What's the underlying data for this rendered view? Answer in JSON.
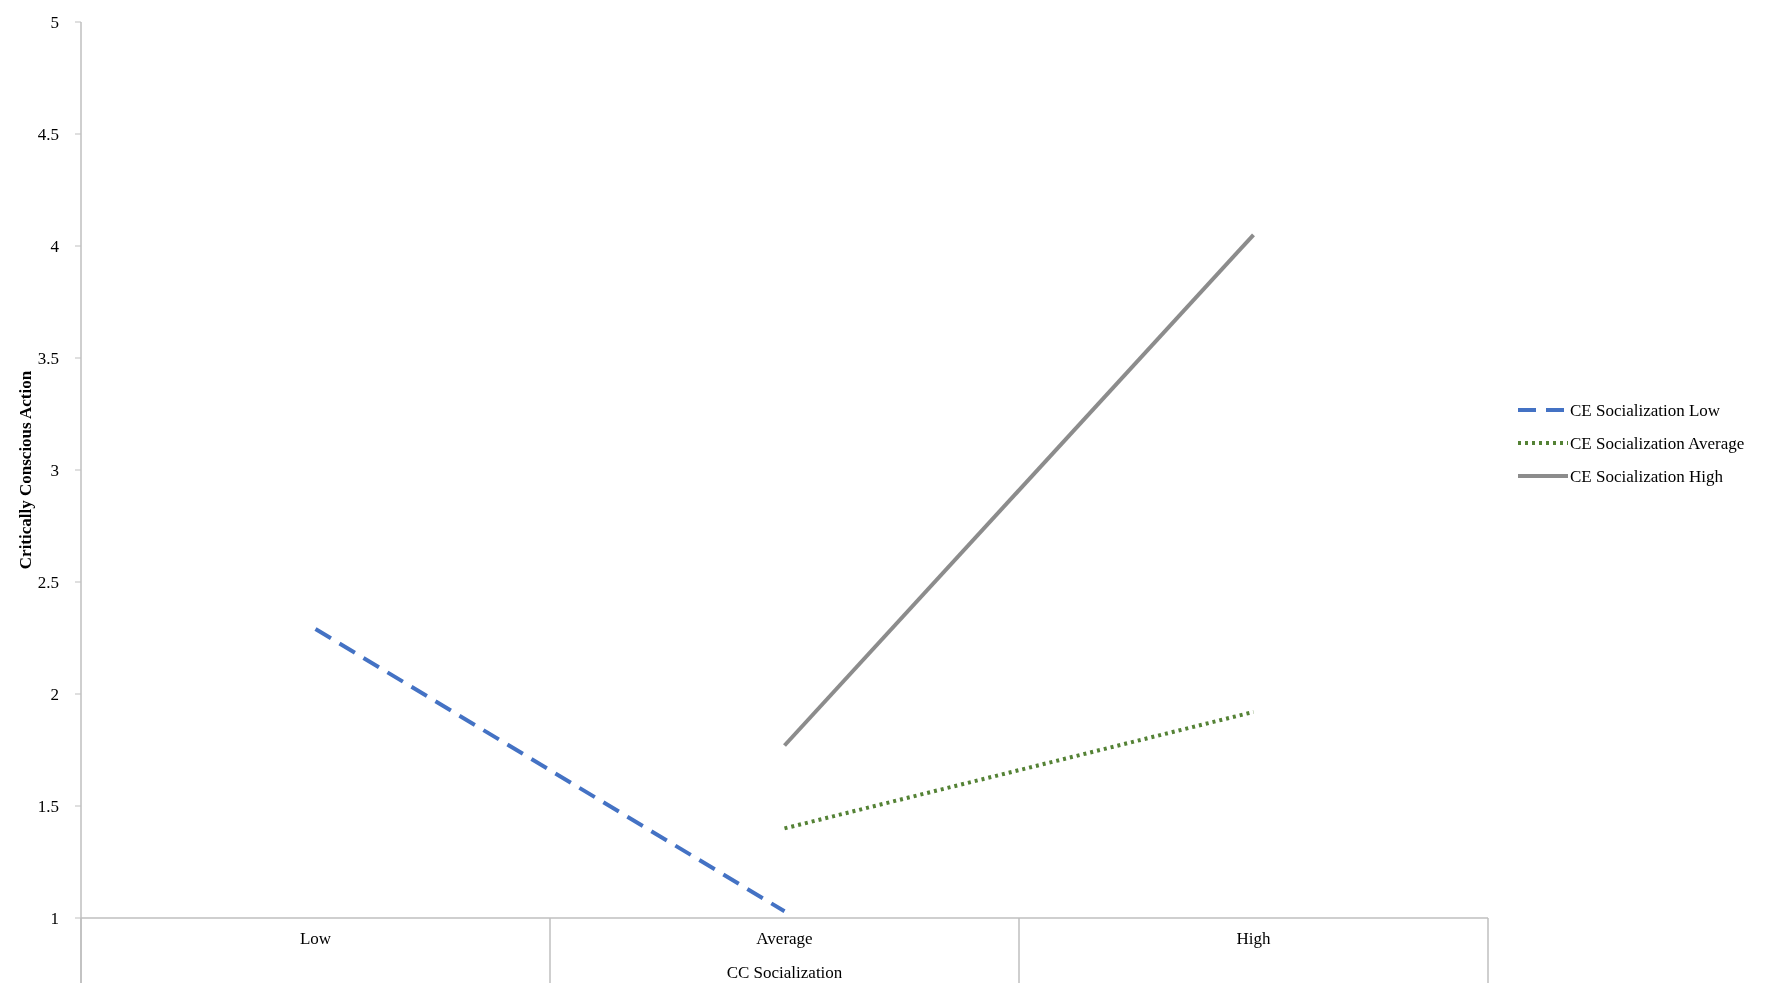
{
  "chart_data": {
    "type": "line",
    "xlabel": "CC Socialization",
    "ylabel": "Critically Conscious Action",
    "categories": [
      "Low",
      "Average",
      "High"
    ],
    "series": [
      {
        "name": "CE Socialization Low",
        "color": "#4472c4",
        "line_style": "dashed",
        "values": [
          2.29,
          1.03,
          null
        ]
      },
      {
        "name": "CE Socialization Average",
        "color": "#548235",
        "line_style": "dotted",
        "values": [
          null,
          1.4,
          1.92
        ]
      },
      {
        "name": "CE Socialization High",
        "color": "#8c8c8c",
        "line_style": "solid",
        "values": [
          null,
          1.77,
          4.05
        ]
      }
    ],
    "ylim": [
      1,
      5
    ],
    "yticks": [
      1,
      1.5,
      2,
      2.5,
      3,
      3.5,
      4,
      4.5,
      5
    ],
    "grid": false,
    "legend": "right",
    "marker": "none"
  }
}
